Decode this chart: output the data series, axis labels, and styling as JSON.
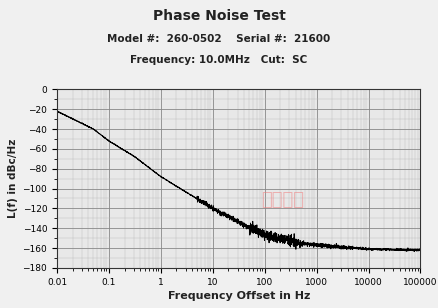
{
  "title": "Phase Noise Test",
  "subtitle1": "Model #:  260-0502    Serial #:  21600",
  "subtitle2": "Frequency: 10.0MHz   Cut:  SC",
  "xlabel": "Frequency Offset in Hz",
  "ylabel": "L(f) in dBc/Hz",
  "xmin": 0.01,
  "xmax": 100000,
  "ymin": -180,
  "ymax": 0,
  "yticks": [
    0,
    -20,
    -40,
    -60,
    -80,
    -100,
    -120,
    -140,
    -160,
    -180
  ],
  "line_color": "#000000",
  "fig_bg_color": "#f0f0f0",
  "plot_bg_color": "#e8e8e8",
  "grid_color": "#888888",
  "minor_grid_color": "#bbbbbb",
  "watermark": "谷鑫电子",
  "watermark_color": "#f08080",
  "noise_key_x": [
    -2,
    -1.3,
    -1,
    -0.5,
    0,
    0.5,
    1,
    1.5,
    2,
    2.3,
    2.7,
    3,
    4,
    5
  ],
  "noise_key_y": [
    -22,
    -40,
    -52,
    -68,
    -88,
    -104,
    -120,
    -134,
    -147,
    -150,
    -155,
    -157,
    -161,
    -162
  ]
}
